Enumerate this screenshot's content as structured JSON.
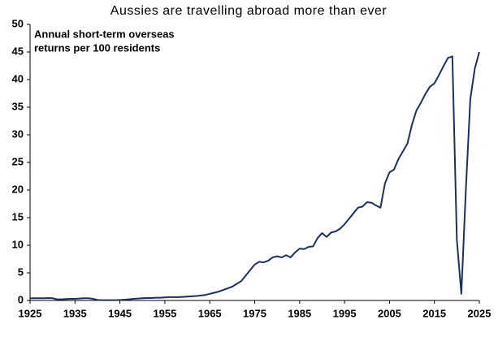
{
  "chart_data": {
    "type": "line",
    "title": "Aussies are travelling abroad more than ever",
    "annotation": [
      "Annual short-term overseas",
      "returns per 100 residents"
    ],
    "x": [
      1925,
      1926,
      1927,
      1928,
      1929,
      1930,
      1931,
      1932,
      1933,
      1934,
      1935,
      1936,
      1937,
      1938,
      1939,
      1940,
      1941,
      1942,
      1943,
      1944,
      1945,
      1946,
      1947,
      1948,
      1949,
      1950,
      1951,
      1952,
      1953,
      1954,
      1955,
      1956,
      1957,
      1958,
      1959,
      1960,
      1961,
      1962,
      1963,
      1964,
      1965,
      1966,
      1967,
      1968,
      1969,
      1970,
      1971,
      1972,
      1973,
      1974,
      1975,
      1976,
      1977,
      1978,
      1979,
      1980,
      1981,
      1982,
      1983,
      1984,
      1985,
      1986,
      1987,
      1988,
      1989,
      1990,
      1991,
      1992,
      1993,
      1994,
      1995,
      1996,
      1997,
      1998,
      1999,
      2000,
      2001,
      2002,
      2003,
      2004,
      2005,
      2006,
      2007,
      2008,
      2009,
      2010,
      2011,
      2012,
      2013,
      2014,
      2015,
      2016,
      2017,
      2018,
      2019,
      2020,
      2021,
      2022,
      2023,
      2024,
      2025
    ],
    "series": [
      {
        "name": "Overseas returns",
        "color": "#1f2f5c",
        "values": [
          0.4,
          0.4,
          0.4,
          0.4,
          0.45,
          0.4,
          0.2,
          0.2,
          0.25,
          0.3,
          0.3,
          0.35,
          0.4,
          0.4,
          0.3,
          0.1,
          0.05,
          0.05,
          0.05,
          0.05,
          0.1,
          0.15,
          0.2,
          0.3,
          0.35,
          0.4,
          0.45,
          0.45,
          0.5,
          0.5,
          0.55,
          0.6,
          0.6,
          0.6,
          0.65,
          0.7,
          0.75,
          0.8,
          0.9,
          1.0,
          1.2,
          1.4,
          1.6,
          1.9,
          2.2,
          2.5,
          3.0,
          3.5,
          4.5,
          5.5,
          6.5,
          7.0,
          6.9,
          7.2,
          7.8,
          8.0,
          7.8,
          8.2,
          7.8,
          8.7,
          9.4,
          9.3,
          9.7,
          9.8,
          11.3,
          12.2,
          11.5,
          12.3,
          12.5,
          13.0,
          13.8,
          14.8,
          15.8,
          16.8,
          17.0,
          17.8,
          17.7,
          17.2,
          16.8,
          21.2,
          23.2,
          23.7,
          25.6,
          27.0,
          28.4,
          31.8,
          34.4,
          35.8,
          37.4,
          38.7,
          39.3,
          40.8,
          42.4,
          43.9,
          44.2,
          11.0,
          1.2,
          20.0,
          36.5,
          42.0,
          45.0
        ]
      }
    ],
    "xlim": [
      1925,
      2025
    ],
    "xticks": [
      1925,
      1935,
      1945,
      1955,
      1965,
      1975,
      1985,
      1995,
      2005,
      2015,
      2025
    ],
    "ylim": [
      0,
      50
    ],
    "yticks": [
      0,
      5,
      10,
      15,
      20,
      25,
      30,
      35,
      40,
      45,
      50
    ],
    "grid": false
  }
}
